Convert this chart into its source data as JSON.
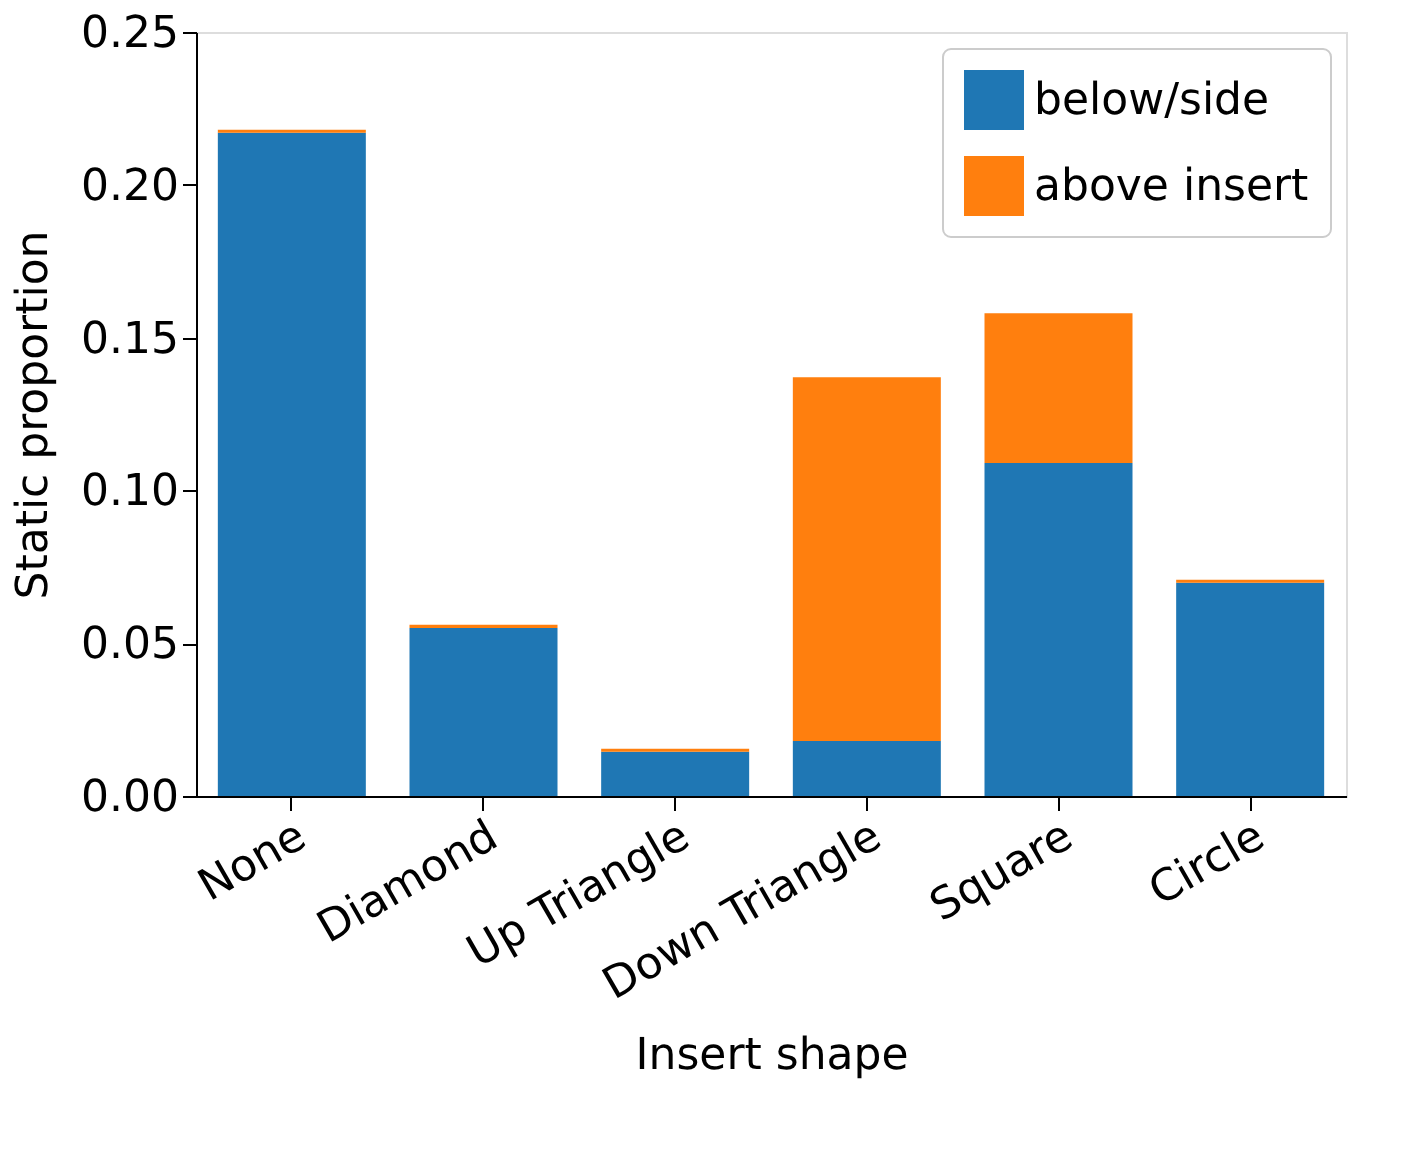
{
  "chart_data": {
    "type": "bar",
    "stacked": true,
    "xlabel": "Insert shape",
    "ylabel": "Static proportion",
    "categories": [
      "None",
      "Diamond",
      "Up Triangle",
      "Down Triangle",
      "Square",
      "Circle"
    ],
    "series": [
      {
        "name": "below/side",
        "color": "#1f77b4",
        "values": [
          0.217,
          0.055,
          0.0145,
          0.018,
          0.109,
          0.0698
        ]
      },
      {
        "name": "above insert",
        "color": "#ff7f0e",
        "values": [
          0.001,
          0.001,
          0.001,
          0.119,
          0.049,
          0.001
        ]
      }
    ],
    "ylim": [
      0,
      0.25
    ],
    "yticks": [
      {
        "value": 0,
        "label": "0.00"
      },
      {
        "value": 0.05,
        "label": "0.05"
      },
      {
        "value": 0.1,
        "label": "0.10"
      },
      {
        "value": 0.15,
        "label": "0.15"
      },
      {
        "value": 0.2,
        "label": "0.20"
      },
      {
        "value": 0.25,
        "label": "0.25"
      }
    ],
    "legend": "top right",
    "grid": false
  }
}
